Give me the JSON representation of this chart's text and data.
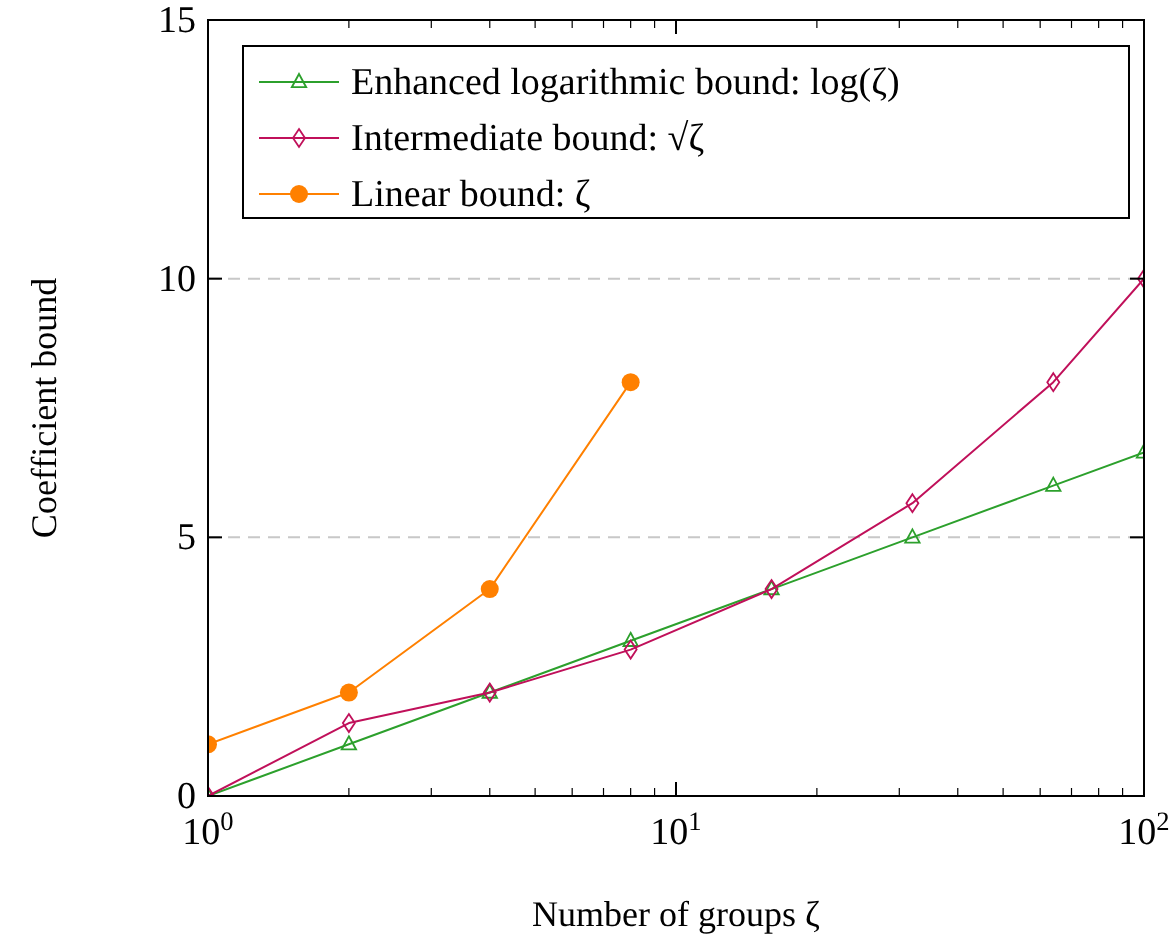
{
  "chart_data": {
    "type": "line",
    "xlabel": "Number of groups ζ",
    "ylabel": "Coefficient bound",
    "log": "x",
    "xlim": [
      1,
      100
    ],
    "xticks": [
      {
        "value": 1,
        "label": "10$^{0}$"
      },
      {
        "value": 10,
        "label": "10$^{1}$"
      },
      {
        "value": 100,
        "label": "10$^{2}$"
      }
    ],
    "ylim": [
      0,
      15
    ],
    "yticks": [
      0,
      5,
      10,
      15
    ],
    "grid": "y",
    "legend": "top",
    "series": [
      {
        "name": "Enhanced logarithmic bound: log(ζ)",
        "color": "#2ca02c",
        "marker": "triangle",
        "x": [
          1,
          2,
          4,
          8,
          16,
          32,
          64,
          100
        ],
        "values": [
          0,
          1,
          2,
          3,
          4,
          5,
          6,
          6.64
        ]
      },
      {
        "name": "Intermediate bound: √ζ",
        "color": "#c0105a",
        "marker": "diamond",
        "x": [
          1,
          2,
          4,
          8,
          16,
          32,
          64,
          100
        ],
        "values": [
          0,
          1.41,
          2,
          2.83,
          4,
          5.66,
          8,
          10
        ]
      },
      {
        "name": "Linear bound: ζ",
        "color": "#ff8000",
        "marker": "circle",
        "x": [
          1,
          2,
          4,
          8
        ],
        "values": [
          1,
          2,
          4,
          8
        ]
      }
    ]
  }
}
